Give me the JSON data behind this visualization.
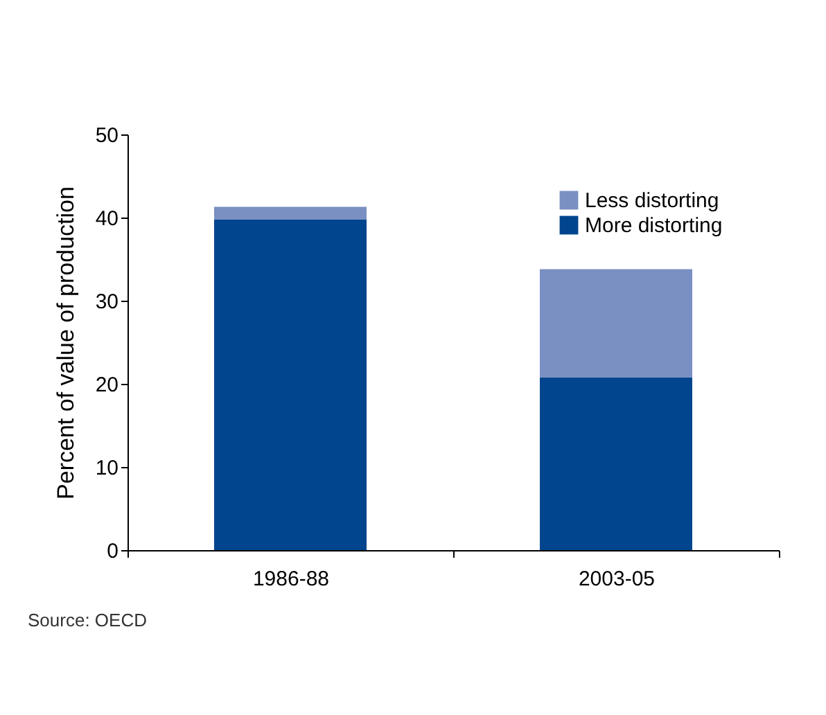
{
  "chart_data": {
    "type": "bar",
    "stacked": true,
    "categories": [
      "1986-88",
      "2003-05"
    ],
    "series": [
      {
        "name": "More distorting",
        "color": "#00458e",
        "values": [
          39.8,
          20.8
        ]
      },
      {
        "name": "Less distorting",
        "color": "#7a8fc2",
        "values": [
          1.5,
          13
        ]
      }
    ],
    "ylabel": "Percent of value of production",
    "ylim": [
      0,
      50
    ],
    "yticks": [
      0,
      10,
      20,
      30,
      40,
      50
    ],
    "grid": false,
    "legend": "top right",
    "annotations": [
      "Source: OECD"
    ]
  }
}
